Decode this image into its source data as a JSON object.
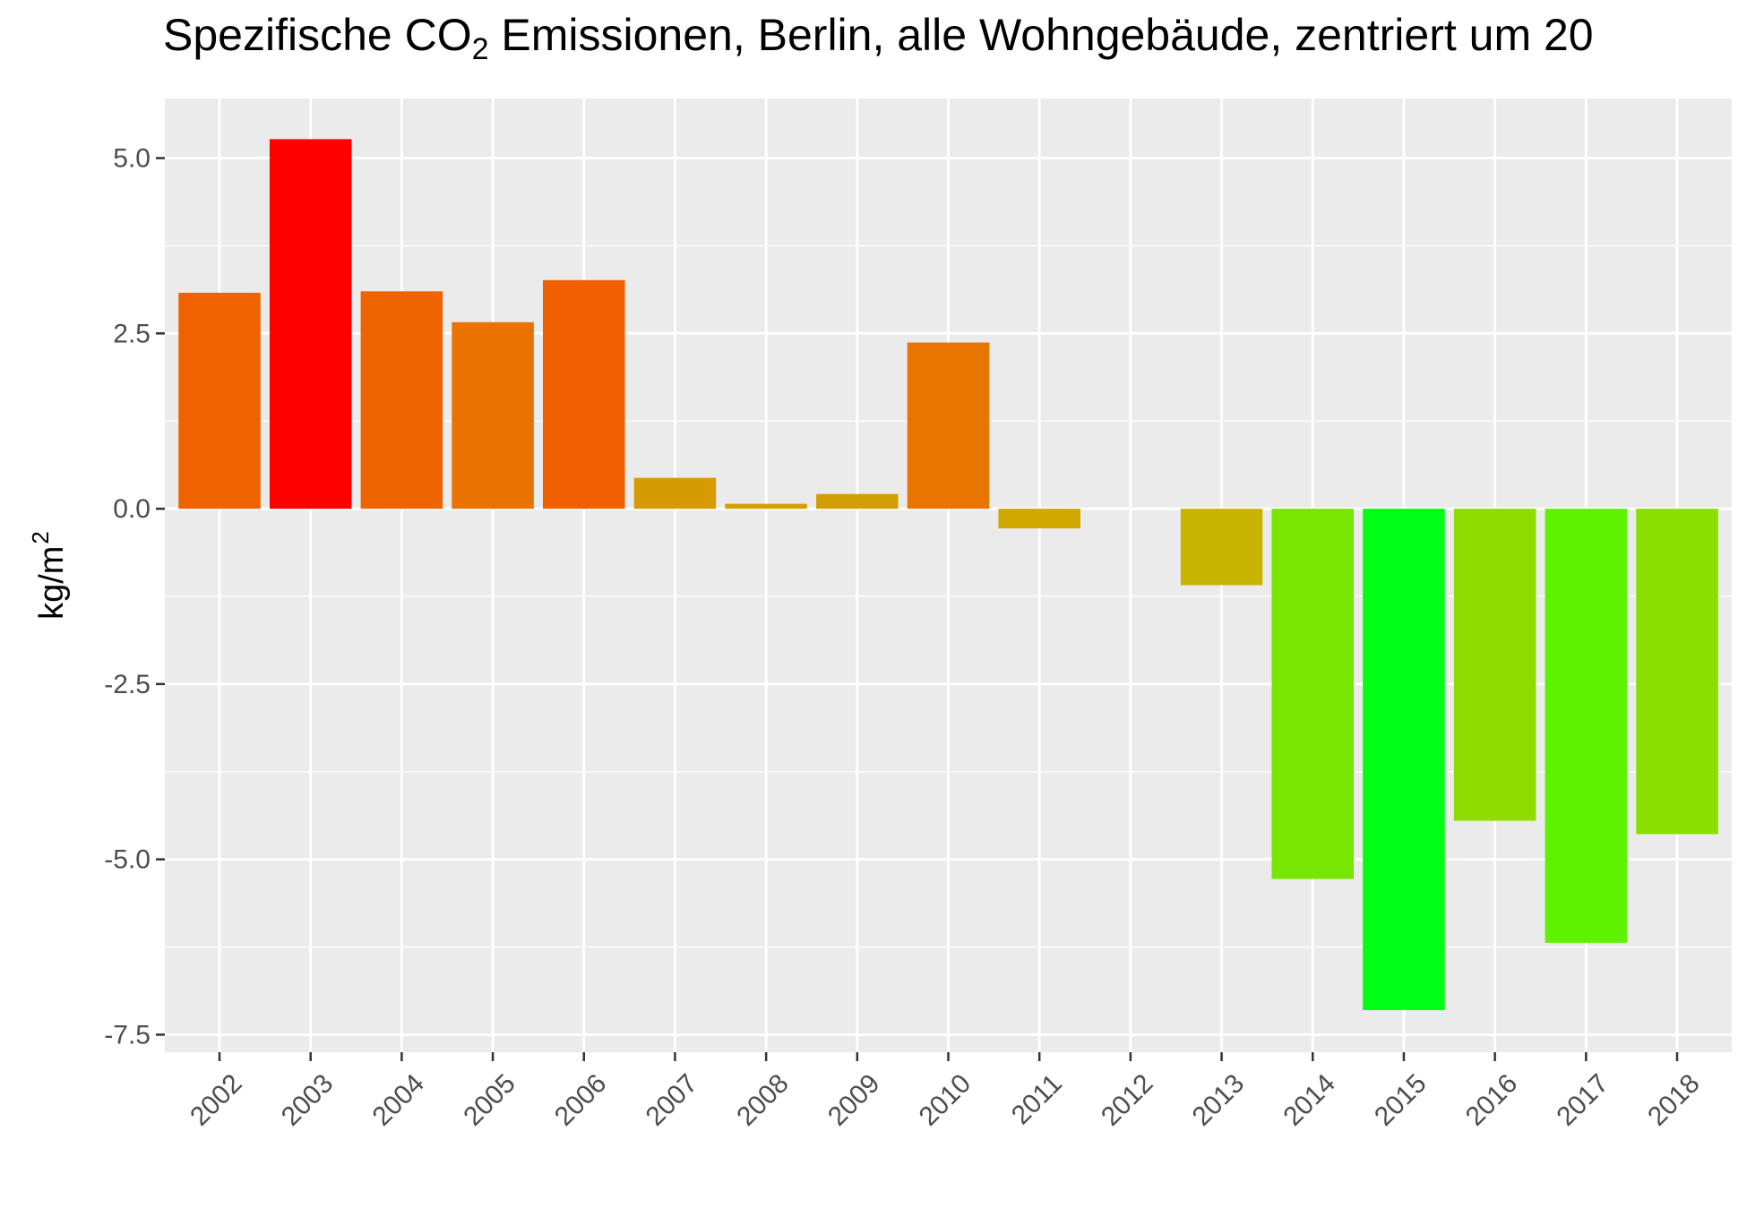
{
  "chart_data": {
    "type": "bar",
    "title": "Spezifische CO₂ Emissionen, Berlin, alle Wohngebäude, zentriert um 20",
    "title_parts": {
      "prefix": "Spezifische CO",
      "subscript": "2",
      "suffix": " Emissionen, Berlin, alle Wohngebäude, zentriert um 20"
    },
    "xlabel": "",
    "ylabel": "kg/m²",
    "ylabel_parts": {
      "base": "kg/m",
      "superscript": "2"
    },
    "categories": [
      "2002",
      "2003",
      "2004",
      "2005",
      "2006",
      "2007",
      "2008",
      "2009",
      "2010",
      "2011",
      "2012",
      "2013",
      "2014",
      "2015",
      "2016",
      "2017",
      "2018"
    ],
    "values": [
      3.08,
      5.27,
      3.1,
      2.66,
      3.26,
      0.44,
      0.07,
      0.21,
      2.37,
      -0.28,
      0.0,
      -1.09,
      -5.28,
      -7.15,
      -4.45,
      -6.19,
      -4.64
    ],
    "colors": [
      "#ee6300",
      "#ff0000",
      "#ee6400",
      "#e97200",
      "#f06000",
      "#d69b00",
      "#d4a000",
      "#d39f00",
      "#e87500",
      "#cfa800",
      "#ccb000",
      "#c7b400",
      "#78e600",
      "#00ff14",
      "#8edc00",
      "#5ff200",
      "#8ade00"
    ],
    "ylim": [
      -7.75,
      5.85
    ],
    "yticks": [
      5.0,
      2.5,
      0.0,
      -2.5,
      -5.0,
      -7.5
    ],
    "ytick_labels": [
      "5.0",
      "2.5",
      "0.0",
      "-2.5",
      "-5.0",
      "-7.5"
    ],
    "grid": true,
    "background": "#ebebeb",
    "gridline_color": "#ffffff",
    "tick_color": "#333333"
  }
}
